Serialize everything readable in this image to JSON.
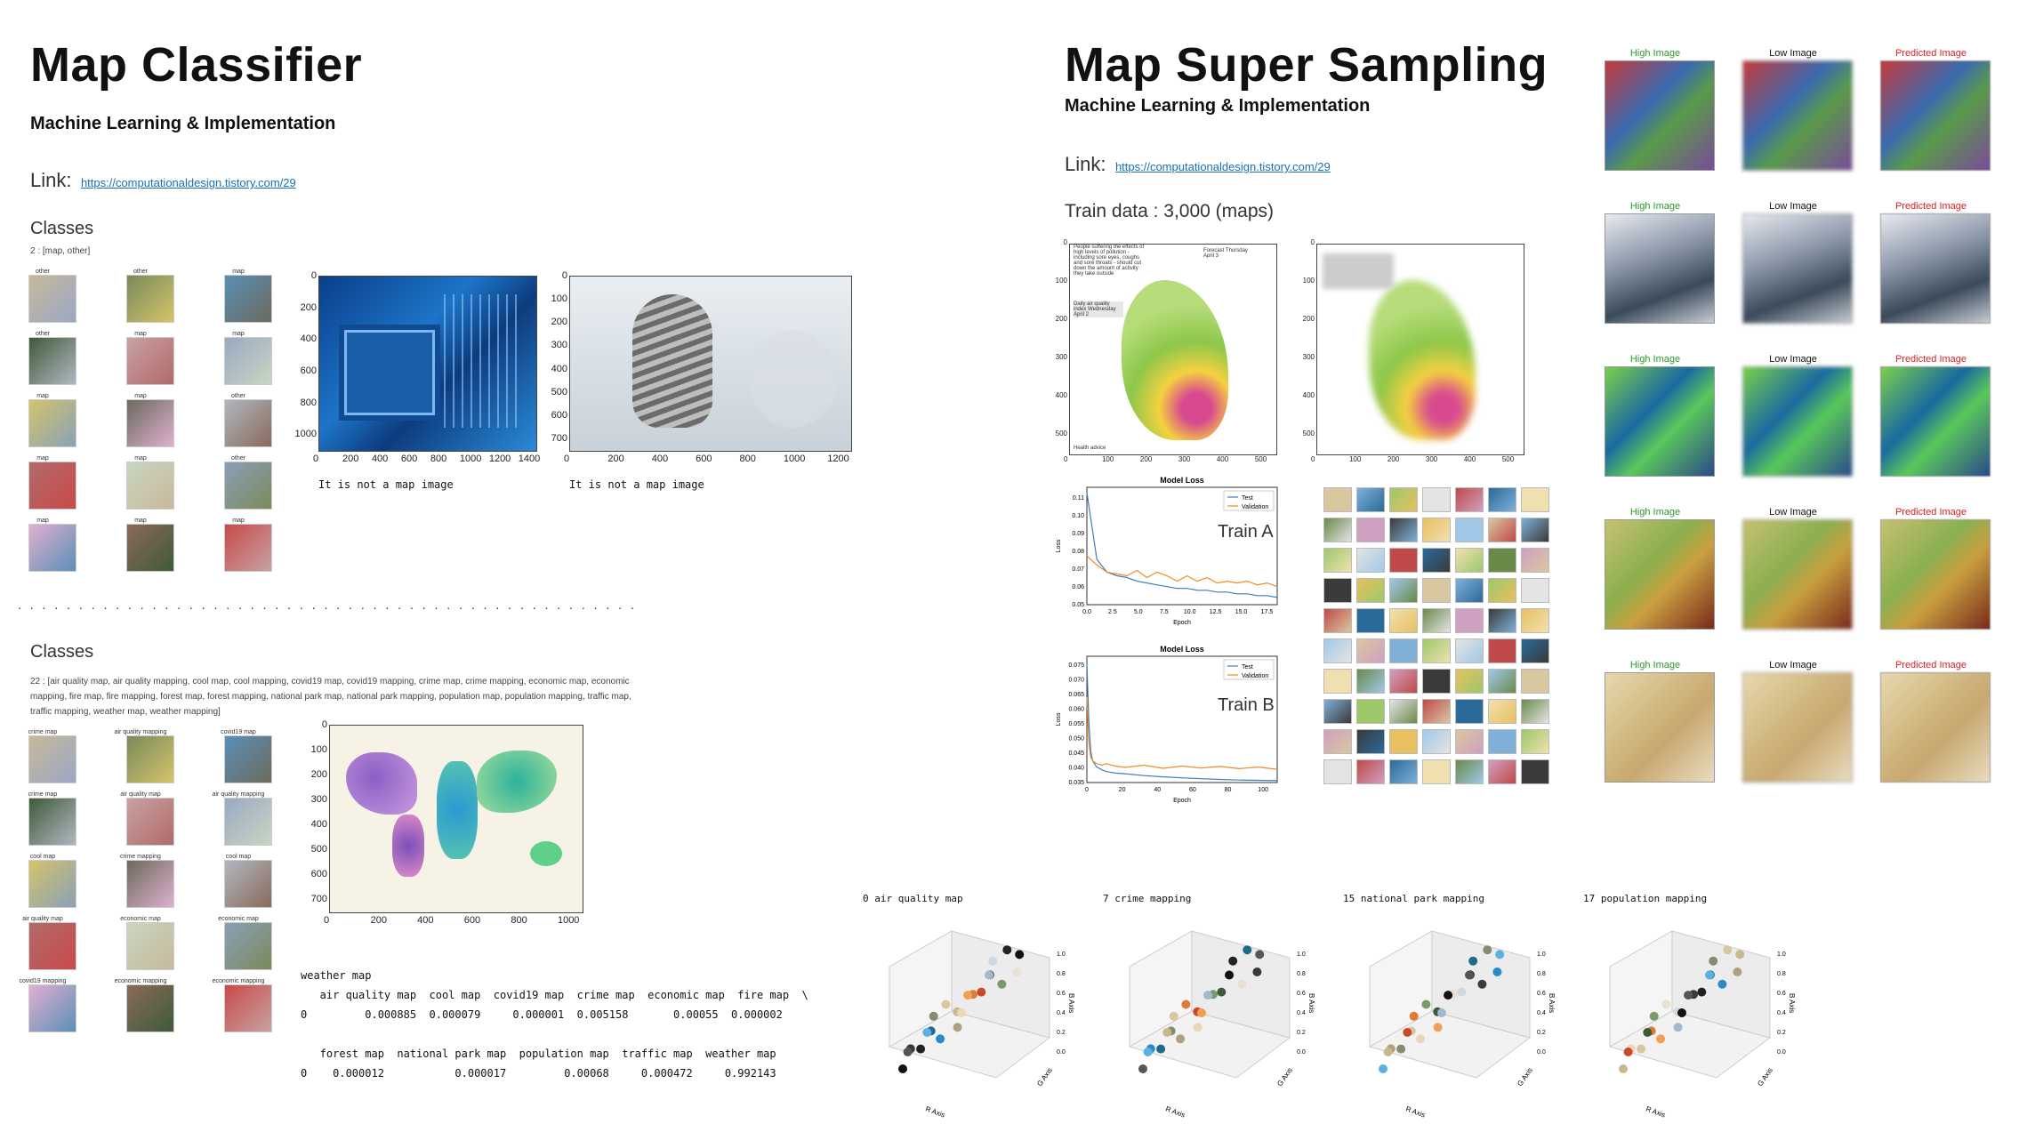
{
  "left": {
    "title": "Map Classifier",
    "subtitle": "Machine Learning & Implementation",
    "link_label": "Link:",
    "link_url": "https://computationaldesign.tistory.com/29",
    "classes1_heading": "Classes",
    "classes1_text": "2 : [map, other]",
    "grid1_labels": [
      "other",
      "other",
      "map",
      "other",
      "map",
      "map",
      "map",
      "map",
      "other",
      "map",
      "map",
      "other",
      "map",
      "map",
      "map"
    ],
    "cpu_caption": "It is not a map image",
    "cat_caption": "It is not a map image",
    "cpu_xticks": [
      "0",
      "200",
      "400",
      "600",
      "800",
      "1000",
      "1200",
      "1400"
    ],
    "cpu_yticks": [
      "0",
      "200",
      "400",
      "600",
      "800",
      "1000"
    ],
    "cat_xticks": [
      "0",
      "200",
      "400",
      "600",
      "800",
      "1000",
      "1200"
    ],
    "cat_yticks": [
      "0",
      "100",
      "200",
      "300",
      "400",
      "500",
      "600",
      "700"
    ],
    "classes2_heading": "Classes",
    "classes2_text": "22 : [air quality map, air quality mapping, cool map, cool mapping, covid19 map, covid19 mapping, crime map, crime mapping, economic map, economic mapping, fire map, fire mapping, forest map, forest mapping, national park map, national park mapping, population map, population mapping, traffic map, traffic mapping, weather map, weather mapping]",
    "grid2_labels": [
      "crime map",
      "air quality mapping",
      "covid19 map",
      "crime map",
      "air quality map",
      "air quality mapping",
      "cool map",
      "crime mapping",
      "cool map",
      "air quality map",
      "economic map",
      "economic map",
      "covid19 mapping",
      "economic mapping",
      "economic mapping"
    ],
    "world_xticks": [
      "0",
      "200",
      "400",
      "600",
      "800",
      "1000"
    ],
    "world_yticks": [
      "0",
      "100",
      "200",
      "300",
      "400",
      "500",
      "600",
      "700"
    ],
    "output_line1": "weather map",
    "output_line2": "   air quality map  cool map  covid19 map  crime map  economic map  fire map  \\",
    "output_line3": "0         0.000885  0.000079     0.000001  0.005158       0.00055  0.000002",
    "output_line4": "   forest map  national park map  population map  traffic map  weather map",
    "output_line5": "0    0.000012           0.000017         0.00068     0.000472     0.992143"
  },
  "right": {
    "title": "Map Super Sampling",
    "subtitle": "Machine Learning & Implementation",
    "link_label": "Link:",
    "link_url": "https://computationaldesign.tistory.com/29",
    "train_data": "Train data : 3,000 (maps)",
    "uk_xticks": [
      "0",
      "100",
      "200",
      "300",
      "400",
      "500"
    ],
    "uk_yticks": [
      "0",
      "100",
      "200",
      "300",
      "400",
      "500"
    ],
    "uk_text1": "People suffering the effects of high levels of pollution - including sore eyes, coughs and sore throats - should cut down the amount of activity they take outside",
    "uk_text2": "Forecast Thursday April 3",
    "uk_text3": "Daily air quality index Wednesday April 2",
    "uk_text4": "Health advice",
    "trainA_label": "Train A",
    "trainB_label": "Train B",
    "model_loss_title": "Model Loss",
    "legend_test": "Test",
    "legend_validation": "Validation",
    "epoch_label": "Epoch",
    "loss_label": "Loss",
    "trainA_xticks": [
      "0.0",
      "2.5",
      "5.0",
      "7.5",
      "10.0",
      "12.5",
      "15.0",
      "17.5"
    ],
    "trainA_yticks": [
      "0.05",
      "0.06",
      "0.07",
      "0.08",
      "0.09",
      "0.10",
      "0.11"
    ],
    "trainB_xticks": [
      "0",
      "20",
      "40",
      "60",
      "80",
      "100"
    ],
    "trainB_yticks": [
      "0.035",
      "0.040",
      "0.045",
      "0.050",
      "0.055",
      "0.060",
      "0.065",
      "0.070",
      "0.075"
    ],
    "col_high": "High Image",
    "col_low": "Low Image",
    "col_pred": "Predicted Image",
    "scatter_titles": [
      "0 air quality map",
      "7 crime mapping",
      "15 national park mapping",
      "17 population mapping"
    ],
    "r_axis": "R Axis",
    "g_axis": "G Axis",
    "b_axis": "B Axis"
  },
  "chart_data": [
    {
      "type": "line",
      "title": "Model Loss",
      "xlabel": "Epoch",
      "ylabel": "Loss",
      "ylim": [
        0.05,
        0.115
      ],
      "xlim": [
        0,
        19
      ],
      "series": [
        {
          "name": "Test",
          "color": "#3a7fc1",
          "x": [
            0,
            1,
            2,
            3,
            4,
            5,
            6,
            7,
            8,
            9,
            10,
            11,
            12,
            13,
            14,
            15,
            16,
            17,
            18,
            19
          ],
          "values": [
            0.112,
            0.075,
            0.068,
            0.066,
            0.065,
            0.063,
            0.062,
            0.061,
            0.06,
            0.059,
            0.059,
            0.058,
            0.058,
            0.057,
            0.057,
            0.056,
            0.056,
            0.055,
            0.055,
            0.054
          ]
        },
        {
          "name": "Validation",
          "color": "#f08a24",
          "x": [
            0,
            1,
            2,
            3,
            4,
            5,
            6,
            7,
            8,
            9,
            10,
            11,
            12,
            13,
            14,
            15,
            16,
            17,
            18,
            19
          ],
          "values": [
            0.077,
            0.072,
            0.068,
            0.067,
            0.066,
            0.069,
            0.065,
            0.068,
            0.066,
            0.063,
            0.066,
            0.063,
            0.065,
            0.062,
            0.063,
            0.062,
            0.063,
            0.061,
            0.062,
            0.06
          ]
        }
      ]
    },
    {
      "type": "line",
      "title": "Model Loss",
      "xlabel": "Epoch",
      "ylabel": "Loss",
      "ylim": [
        0.035,
        0.075
      ],
      "xlim": [
        0,
        100
      ],
      "series": [
        {
          "name": "Test",
          "color": "#3a7fc1",
          "x": [
            0,
            1,
            2,
            3,
            5,
            8,
            10,
            15,
            20,
            30,
            40,
            50,
            60,
            70,
            80,
            90,
            100
          ],
          "values": [
            0.073,
            0.055,
            0.045,
            0.042,
            0.04,
            0.039,
            0.0385,
            0.038,
            0.0378,
            0.0372,
            0.0368,
            0.0365,
            0.0362,
            0.036,
            0.0358,
            0.0357,
            0.0356
          ]
        },
        {
          "name": "Validation",
          "color": "#f08a24",
          "x": [
            0,
            1,
            2,
            3,
            5,
            8,
            10,
            15,
            20,
            30,
            40,
            50,
            60,
            70,
            80,
            90,
            100
          ],
          "values": [
            0.062,
            0.048,
            0.043,
            0.042,
            0.041,
            0.0405,
            0.041,
            0.0402,
            0.0398,
            0.0405,
            0.0395,
            0.0402,
            0.0396,
            0.0401,
            0.0394,
            0.0399,
            0.0392
          ]
        }
      ]
    }
  ]
}
